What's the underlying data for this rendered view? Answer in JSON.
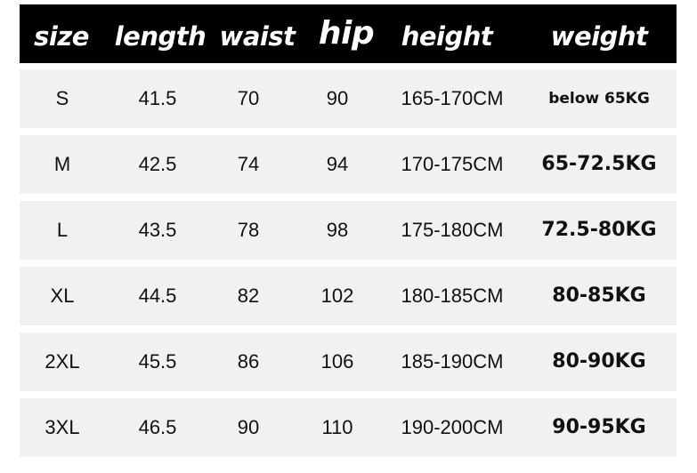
{
  "headers": [
    "size",
    "length",
    "waist",
    "hip",
    "height",
    "weight"
  ],
  "rows": [
    [
      "S",
      "41.5",
      "70",
      "90",
      "165-170CM",
      "below 65KG"
    ],
    [
      "M",
      "42.5",
      "74",
      "94",
      "170-175CM",
      "65-72.5KG"
    ],
    [
      "L",
      "43.5",
      "78",
      "98",
      "175-180CM",
      "72.5-80KG"
    ],
    [
      "XL",
      "44.5",
      "82",
      "102",
      "180-185CM",
      "80-85KG"
    ],
    [
      "2XL",
      "45.5",
      "86",
      "106",
      "185-190CM",
      "80-90KG"
    ],
    [
      "3XL",
      "46.5",
      "90",
      "110",
      "190-200CM",
      "90-95KG"
    ]
  ],
  "colors": {
    "header_bg": "#000000",
    "header_text": "#ffffff",
    "row_bg": "#f1f1f1",
    "text": "#111111"
  }
}
